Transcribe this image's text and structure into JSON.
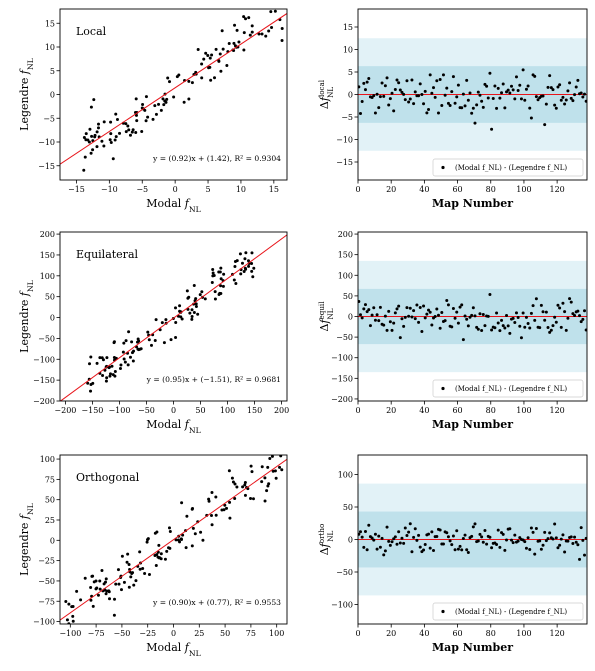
{
  "chart_data": [
    {
      "type": "scatter",
      "title": "Local",
      "xlabel": "Modal f_NL",
      "ylabel": "Legendre f_NL",
      "xlim": [
        -17.5,
        17
      ],
      "ylim": [
        -18,
        18
      ],
      "xticks": [
        -15,
        -10,
        -5,
        0,
        5,
        10,
        15
      ],
      "yticks": [
        -15,
        -10,
        -5,
        0,
        5,
        10,
        15
      ],
      "fit": {
        "slope": 0.92,
        "intercept": 1.42,
        "r2": 0.9304,
        "color": "#e8141a"
      },
      "annotation": "y = (0.92)x + (1.42),  R² = 0.9304",
      "n_points": 130,
      "point_spread": 2.5,
      "x_range": [
        -14.5,
        16.5
      ],
      "seed": 11
    },
    {
      "type": "scatter",
      "title": "",
      "xlabel": "Map Number",
      "ylabel": "Δf_NL^local",
      "xlim": [
        0,
        138
      ],
      "ylim": [
        -19,
        19
      ],
      "xticks": [
        0,
        20,
        40,
        60,
        80,
        100,
        120
      ],
      "yticks": [
        -15,
        -10,
        -5,
        0,
        5,
        10,
        15
      ],
      "bands": [
        {
          "half_width": 12.5,
          "color": "#e2f2f7"
        },
        {
          "half_width": 6.3,
          "color": "#bfe1eb"
        }
      ],
      "zero_line_color": "#e8141a",
      "legend": "(Modal f_NL) - (Legendre f_NL)",
      "legend_position": "bottom-right",
      "n_points": 138,
      "point_spread": 2.5,
      "seed": 21
    },
    {
      "type": "scatter",
      "title": "Equilateral",
      "xlabel": "Modal f_NL",
      "ylabel": "Legendre f_NL",
      "xlim": [
        -210,
        210
      ],
      "ylim": [
        -200,
        205
      ],
      "xticks": [
        -200,
        -150,
        -100,
        -50,
        0,
        50,
        100,
        150,
        200
      ],
      "yticks": [
        -200,
        -150,
        -100,
        -50,
        0,
        50,
        100,
        150,
        200
      ],
      "fit": {
        "slope": 0.95,
        "intercept": -1.51,
        "r2": 0.9681,
        "color": "#e8141a"
      },
      "annotation": "y = (0.95)x + (−1.51),  R² = 0.9681",
      "n_points": 140,
      "point_spread": 22,
      "x_range": [
        -160,
        150
      ],
      "seed": 31
    },
    {
      "type": "scatter",
      "title": "",
      "xlabel": "Map Number",
      "ylabel": "Δf_NL^equil",
      "xlim": [
        0,
        138
      ],
      "ylim": [
        -205,
        205
      ],
      "xticks": [
        0,
        20,
        40,
        60,
        80,
        100,
        120
      ],
      "yticks": [
        -200,
        -150,
        -100,
        -50,
        0,
        50,
        100,
        150,
        200
      ],
      "bands": [
        {
          "half_width": 135,
          "color": "#e2f2f7"
        },
        {
          "half_width": 67,
          "color": "#bfe1eb"
        }
      ],
      "zero_line_color": "#e8141a",
      "legend": "(Modal f_NL) - (Legendre f_NL)",
      "legend_position": "bottom-right",
      "n_points": 138,
      "point_spread": 22,
      "seed": 41
    },
    {
      "type": "scatter",
      "title": "Orthogonal",
      "xlabel": "Modal f_NL",
      "ylabel": "Legendre f_NL",
      "xlim": [
        -110,
        110
      ],
      "ylim": [
        -103,
        105
      ],
      "xticks": [
        -100,
        -75,
        -50,
        -25,
        0,
        25,
        50,
        75,
        100
      ],
      "yticks": [
        -100,
        -75,
        -50,
        -25,
        0,
        25,
        50,
        75,
        100
      ],
      "fit": {
        "slope": 0.9,
        "intercept": 0.77,
        "r2": 0.9553,
        "color": "#e8141a"
      },
      "annotation": "y = (0.90)x + (0.77),  R² = 0.9553",
      "n_points": 150,
      "point_spread": 13,
      "x_range": [
        -105,
        105
      ],
      "seed": 51
    },
    {
      "type": "scatter",
      "title": "",
      "xlabel": "Map Number",
      "ylabel": "Δf_NL^ortho",
      "xlim": [
        0,
        138
      ],
      "ylim": [
        -130,
        130
      ],
      "xticks": [
        0,
        20,
        40,
        60,
        80,
        100,
        120
      ],
      "yticks": [
        -100,
        -50,
        0,
        50,
        100
      ],
      "bands": [
        {
          "half_width": 86,
          "color": "#e2f2f7"
        },
        {
          "half_width": 43,
          "color": "#bfe1eb"
        }
      ],
      "zero_line_color": "#e8141a",
      "legend": "(Modal f_NL) - (Legendre f_NL)",
      "legend_position": "bottom-right",
      "n_points": 138,
      "point_spread": 13,
      "seed": 61
    }
  ]
}
